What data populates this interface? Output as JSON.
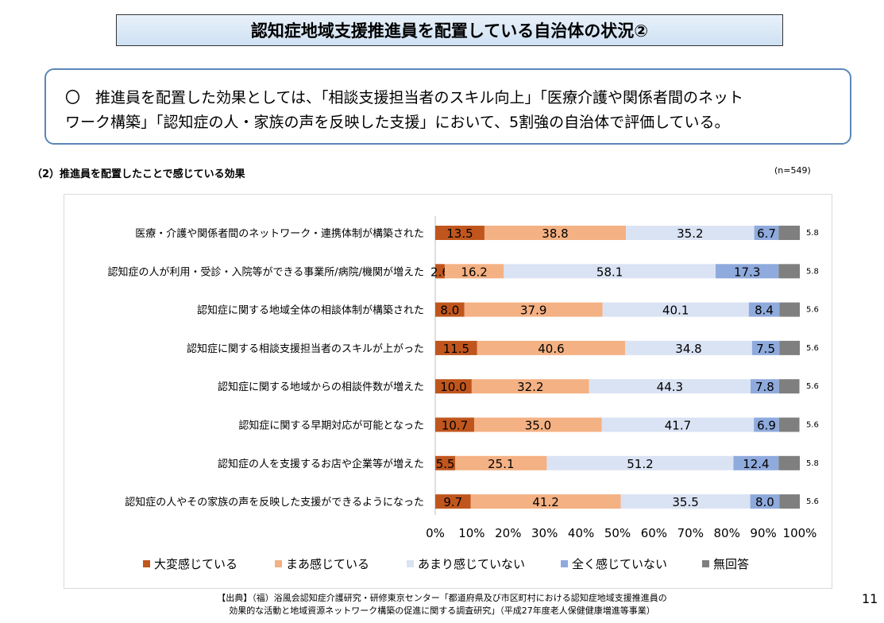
{
  "header": {
    "title": "認知症地域支援推進員を配置している自治体の状況②"
  },
  "summary": {
    "line1": "〇　推進員を配置した効果としては、「相談支援担当者のスキル向上」「医療介護や関係者間のネット",
    "line2": "ワーク構築」「認知症の人・家族の声を反映した支援」において、5割強の自治体で評価している。"
  },
  "section": {
    "title": "（2）推進員を配置したことで感じている効果",
    "n": "(n=549)"
  },
  "chart_data": {
    "type": "bar",
    "orientation": "horizontal",
    "stacked": "percent",
    "categories": [
      "医療・介護や関係者間のネットワーク・連携体制が構築された",
      "認知症の人が利用・受診・入院等ができる事業所/病院/機関が増えた",
      "認知症に関する地域全体の相談体制が構築された",
      "認知症に関する相談支援担当者のスキルが上がった",
      "認知症に関する地域からの相談件数が増えた",
      "認知症に関する早期対応が可能となった",
      "認知症の人を支援するお店や企業等が増えた",
      "認知症の人やその家族の声を反映した支援ができるようになった"
    ],
    "series": [
      {
        "name": "大変感じている",
        "color": "#c0561d",
        "values": [
          13.5,
          2.6,
          8.0,
          11.5,
          10.0,
          10.7,
          5.5,
          9.7
        ],
        "labels": [
          "13.5",
          "2.6",
          "8.0",
          "11.5",
          "10.0",
          "10.7",
          "5.5",
          "9.7"
        ]
      },
      {
        "name": "まあ感じている",
        "color": "#f4b183",
        "values": [
          38.8,
          16.2,
          37.9,
          40.6,
          32.2,
          35.0,
          25.1,
          41.2
        ],
        "labels": [
          "38.8",
          "16.2",
          "37.9",
          "40.6",
          "32.2",
          "35.0",
          "25.1",
          "41.2"
        ]
      },
      {
        "name": "あまり感じていない",
        "color": "#dae3f3",
        "values": [
          35.2,
          58.1,
          40.1,
          34.8,
          44.3,
          41.7,
          51.2,
          35.5
        ],
        "labels": [
          "35.2",
          "58.1",
          "40.1",
          "34.8",
          "44.3",
          "41.7",
          "51.2",
          "35.5"
        ]
      },
      {
        "name": "全く感じていない",
        "color": "#8faadc",
        "values": [
          6.7,
          17.3,
          8.4,
          7.5,
          7.8,
          6.9,
          12.4,
          8.0
        ],
        "labels": [
          "6.7",
          "17.3",
          "8.4",
          "7.5",
          "7.8",
          "6.9",
          "12.4",
          "8.0"
        ]
      },
      {
        "name": "無回答",
        "color": "#7f7f7f",
        "values": [
          5.8,
          5.8,
          5.6,
          5.6,
          5.6,
          5.6,
          5.8,
          5.6
        ],
        "labels": [
          "5.8",
          "5.8",
          "5.6",
          "5.6",
          "5.6",
          "5.6",
          "5.8",
          "5.6"
        ]
      }
    ],
    "xlim": [
      0,
      100
    ],
    "xticks": [
      "0%",
      "10%",
      "20%",
      "30%",
      "40%",
      "50%",
      "60%",
      "70%",
      "80%",
      "90%",
      "100%"
    ],
    "legend": "bottom"
  },
  "source": {
    "line1": "【出典】（福）浴風会認知症介護研究・研修東京センター「都道府県及び市区町村における認知症地域支援推進員の",
    "line2": "効果的な活動と地域資源ネットワーク構築の促進に関する調査研究」（平成27年度老人保健健康増進等事業）"
  },
  "page": {
    "number": "11"
  }
}
